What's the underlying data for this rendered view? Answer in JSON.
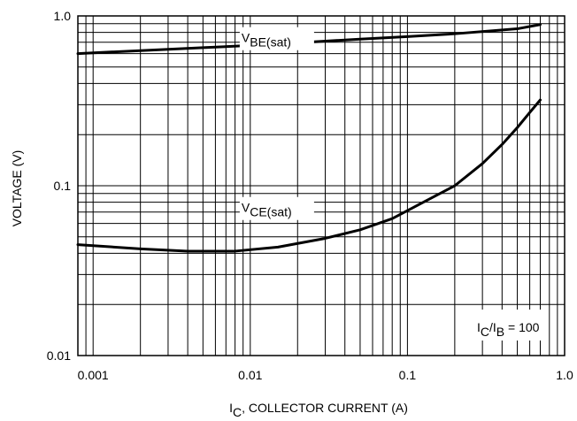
{
  "chart_data": {
    "type": "line",
    "xlabel": {
      "main": "I",
      "sub": "C",
      "rest": ", COLLECTOR CURRENT (A)"
    },
    "ylabel": "VOLTAGE (V)",
    "x_scale": "log",
    "y_scale": "log",
    "xlim": [
      0.0008,
      1.0
    ],
    "ylim": [
      0.01,
      1.0
    ],
    "x_ticks": [
      {
        "value": 0.001,
        "label": "0.001"
      },
      {
        "value": 0.01,
        "label": "0.01"
      },
      {
        "value": 0.1,
        "label": "0.1"
      },
      {
        "value": 1.0,
        "label": "1.0"
      }
    ],
    "y_ticks": [
      {
        "value": 0.01,
        "label": "0.01"
      },
      {
        "value": 0.1,
        "label": "0.1"
      },
      {
        "value": 1.0,
        "label": "1.0"
      }
    ],
    "grid": true,
    "series": [
      {
        "label_main": "V",
        "label_sub": "BE(sat)",
        "label_at": [
          0.00835,
          0.7
        ],
        "points": [
          [
            0.0008,
            0.6
          ],
          [
            0.002,
            0.625
          ],
          [
            0.005,
            0.65
          ],
          [
            0.01,
            0.67
          ],
          [
            0.02,
            0.695
          ],
          [
            0.05,
            0.73
          ],
          [
            0.1,
            0.755
          ],
          [
            0.2,
            0.785
          ],
          [
            0.5,
            0.84
          ],
          [
            0.7,
            0.89
          ]
        ]
      },
      {
        "label_main": "V",
        "label_sub": "CE(sat)",
        "label_at": [
          0.00835,
          0.07
        ],
        "points": [
          [
            0.0008,
            0.045
          ],
          [
            0.002,
            0.0425
          ],
          [
            0.004,
            0.0412
          ],
          [
            0.008,
            0.0412
          ],
          [
            0.015,
            0.0435
          ],
          [
            0.03,
            0.049
          ],
          [
            0.05,
            0.055
          ],
          [
            0.08,
            0.064
          ],
          [
            0.12,
            0.078
          ],
          [
            0.2,
            0.1
          ],
          [
            0.3,
            0.135
          ],
          [
            0.4,
            0.175
          ],
          [
            0.5,
            0.22
          ],
          [
            0.6,
            0.27
          ],
          [
            0.7,
            0.32
          ]
        ]
      }
    ],
    "annotation": {
      "pre": "I",
      "sub1": "C",
      "mid": "/I",
      "sub2": "B",
      "post": " = 100"
    }
  }
}
